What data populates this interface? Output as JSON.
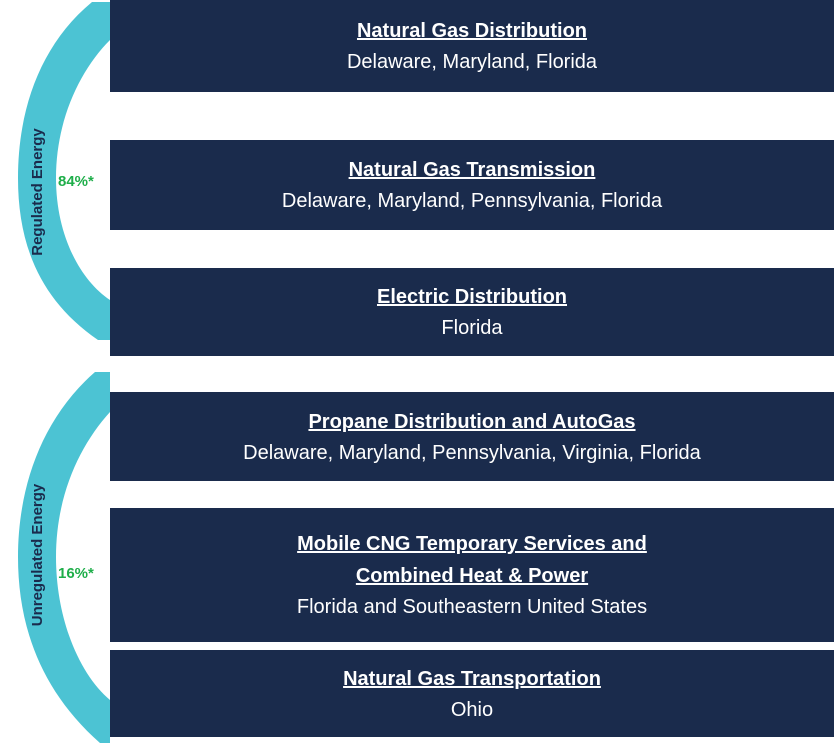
{
  "groups": [
    {
      "label": "Regulated Energy",
      "percent": "84%*",
      "segments": [
        {
          "title": [
            "Natural Gas Distribution"
          ],
          "regions": "Delaware, Maryland, Florida"
        },
        {
          "title": [
            "Natural Gas Transmission"
          ],
          "regions": "Delaware, Maryland, Pennsylvania, Florida"
        },
        {
          "title": [
            "Electric Distribution"
          ],
          "regions": "Florida"
        }
      ]
    },
    {
      "label": "Unregulated Energy",
      "percent": "16%*",
      "segments": [
        {
          "title": [
            "Propane Distribution and AutoGas"
          ],
          "regions": "Delaware, Maryland, Pennsylvania, Virginia, Florida"
        },
        {
          "title": [
            "Mobile CNG Temporary Services and",
            "Combined Heat &  Power"
          ],
          "regions": "Florida and Southeastern United States"
        },
        {
          "title": [
            "Natural Gas Transportation"
          ],
          "regions": "Ohio"
        }
      ]
    }
  ]
}
